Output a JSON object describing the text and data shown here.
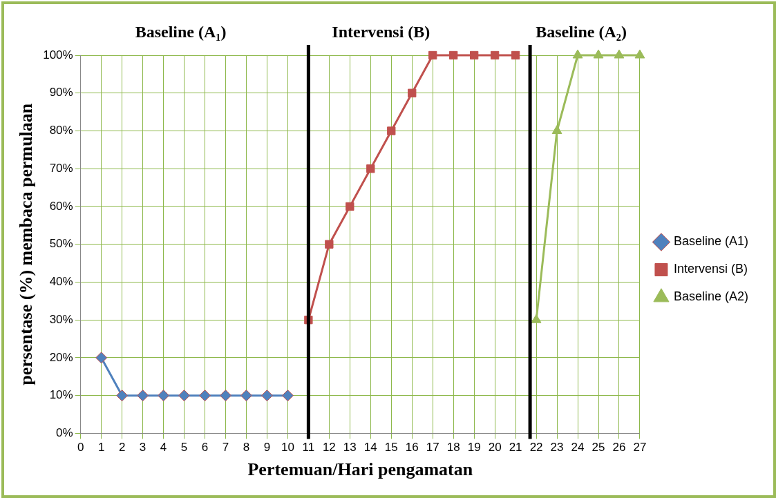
{
  "chart_data": {
    "type": "line",
    "xlabel": "Pertemuan/Hari pengamatan",
    "ylabel": "persentase (%) membaca permulaan",
    "annotations": [
      "Baseline (A₁)",
      "Intervensi (B)",
      "Baseline (A₂)"
    ],
    "xlim": [
      0,
      27
    ],
    "xticks": [
      0,
      1,
      2,
      3,
      4,
      5,
      6,
      7,
      8,
      9,
      10,
      11,
      12,
      13,
      14,
      15,
      16,
      17,
      18,
      19,
      20,
      21,
      22,
      23,
      24,
      25,
      26,
      27
    ],
    "ylim": [
      0,
      100
    ],
    "yticks": [
      {
        "value": 0,
        "label": "0%"
      },
      {
        "value": 10,
        "label": "10%"
      },
      {
        "value": 20,
        "label": "20%"
      },
      {
        "value": 30,
        "label": "30%"
      },
      {
        "value": 40,
        "label": "40%"
      },
      {
        "value": 50,
        "label": "50%"
      },
      {
        "value": 60,
        "label": "60%"
      },
      {
        "value": 70,
        "label": "70%"
      },
      {
        "value": 80,
        "label": "80%"
      },
      {
        "value": 90,
        "label": "90%"
      },
      {
        "value": 100,
        "label": "100%"
      }
    ],
    "grid": true,
    "legend": "right",
    "ref_lines": [
      {
        "axis": "x",
        "value": 11,
        "color": "#000000"
      },
      {
        "axis": "x",
        "value": 21.7,
        "color": "#000000"
      }
    ],
    "series": [
      {
        "name": "Baseline (A1)",
        "color": "#4f81bd",
        "marker": "diamond",
        "x": [
          1,
          2,
          3,
          4,
          5,
          6,
          7,
          8,
          9,
          10
        ],
        "values": [
          20,
          10,
          10,
          10,
          10,
          10,
          10,
          10,
          10,
          10
        ]
      },
      {
        "name": "Intervensi (B)",
        "color": "#c0504d",
        "marker": "square",
        "x": [
          11,
          12,
          13,
          14,
          15,
          16,
          17,
          18,
          19,
          20,
          21
        ],
        "values": [
          30,
          50,
          60,
          70,
          80,
          90,
          100,
          100,
          100,
          100,
          100
        ]
      },
      {
        "name": "Baseline (A2)",
        "color": "#9bbb59",
        "marker": "triangle",
        "x": [
          22,
          23,
          24,
          25,
          26,
          27
        ],
        "values": [
          30,
          80,
          100,
          100,
          100,
          100
        ]
      }
    ]
  }
}
